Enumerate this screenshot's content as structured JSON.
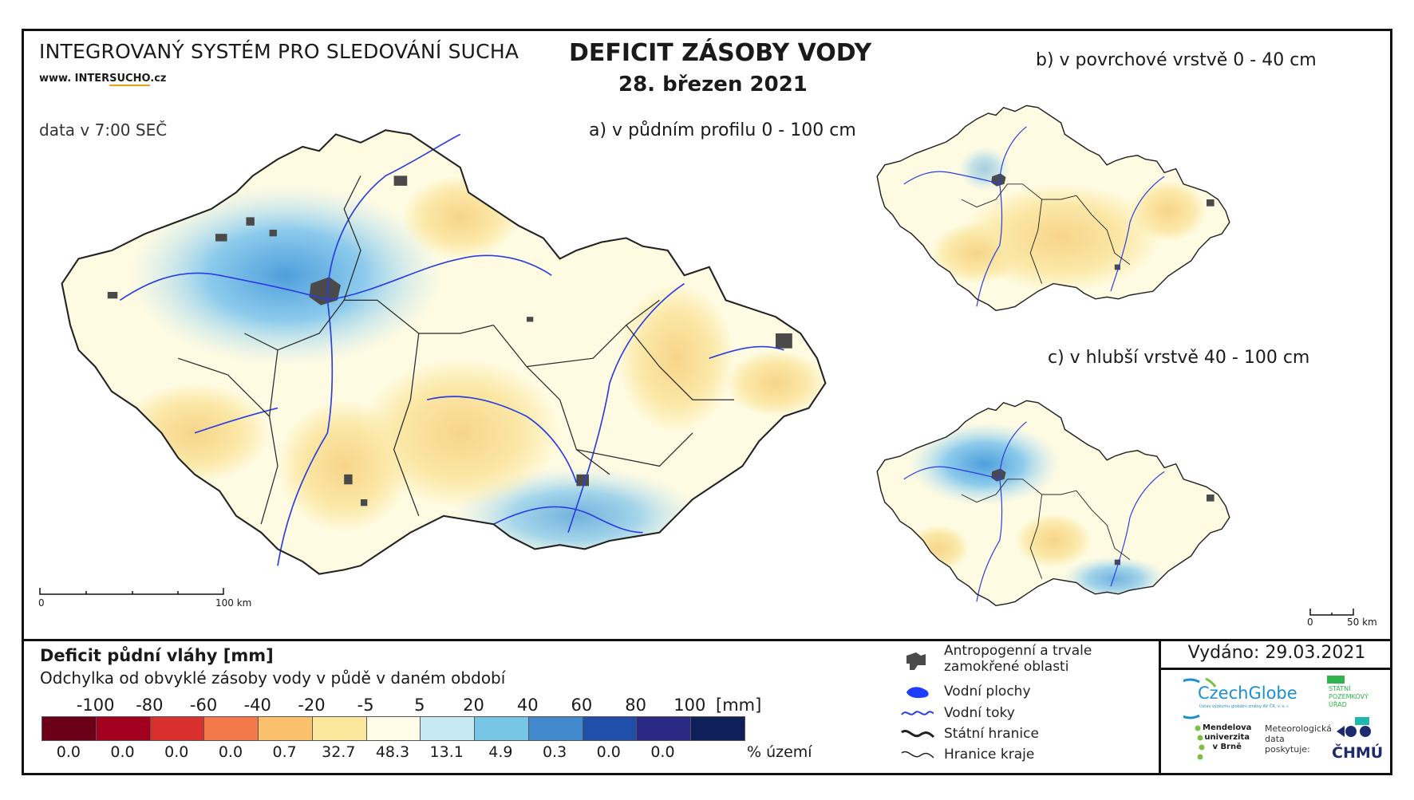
{
  "header": {
    "system_title": "INTEGROVANÝ SYSTÉM PRO SLEDOVÁNÍ SUCHA",
    "website_pre": "www. INTER",
    "website_accent": "SUCHO",
    "website_post": ".cz",
    "data_time": "data v 7:00 SEČ",
    "main_title": "DEFICIT ZÁSOBY VODY",
    "date": "28. březen 2021"
  },
  "maps": {
    "a_label": "a) v půdním profilu 0 - 100 cm",
    "b_label": "b) v povrchové vrstvě 0 - 40 cm",
    "c_label": "c) v hlubší vrstvě 40 - 100 cm",
    "scale_main": {
      "zero": "0",
      "end": "100 km"
    },
    "scale_small": {
      "zero": "0",
      "end": "50 km"
    }
  },
  "legend": {
    "title": "Deficit půdní vláhy  [mm]",
    "subtitle": "Odchylka od obvyklé zásoby vody v půdě v daném období",
    "scale_labels": [
      "-100",
      "-80",
      "-60",
      "-40",
      "-20",
      "-5",
      "5",
      "20",
      "40",
      "60",
      "80",
      "100"
    ],
    "unit": "[mm]",
    "classes": [
      {
        "color": "#6b0018",
        "pct": "0.0"
      },
      {
        "color": "#a3001f",
        "pct": "0.0"
      },
      {
        "color": "#d9302e",
        "pct": "0.0"
      },
      {
        "color": "#f4794a",
        "pct": "0.0"
      },
      {
        "color": "#fbc06b",
        "pct": "0.7"
      },
      {
        "color": "#fbe79b",
        "pct": "32.7"
      },
      {
        "color": "#fffde7",
        "pct": "48.3"
      },
      {
        "color": "#c7e9f4",
        "pct": "13.1"
      },
      {
        "color": "#78c6e6",
        "pct": "4.9"
      },
      {
        "color": "#4189cc",
        "pct": "0.3"
      },
      {
        "color": "#1f4fa8",
        "pct": "0.0"
      },
      {
        "color": "#2a2a85",
        "pct": "0.0"
      },
      {
        "color": "#0f1f5a",
        "pct": ""
      }
    ],
    "pct_unit": "% území"
  },
  "symbols": {
    "urban": "Antropogenní a trvale\nzamokřené oblasti",
    "water_bodies": "Vodní plochy",
    "rivers": "Vodní toky",
    "state_border": "Státní hranice",
    "region_border": "Hranice kraje"
  },
  "issued": "Vydáno: 29.03.2021",
  "logos": {
    "czechglobe": "CzechGlobe",
    "czechglobe_sub": "Ústav výzkumu globální změny AV ČR, v. v. i.",
    "spu": "STÁTNÍ\nPOZEMKOVÝ\nÚŘAD",
    "mendel": "Mendelova\nuniverzita\nv Brně",
    "meteo": "Meteorologická\ndata\nposkytuje:",
    "chmu": "ČHMÚ"
  },
  "colors": {
    "urban": "#4a4a4a",
    "river": "#2b3ee0",
    "border": "#222222"
  }
}
